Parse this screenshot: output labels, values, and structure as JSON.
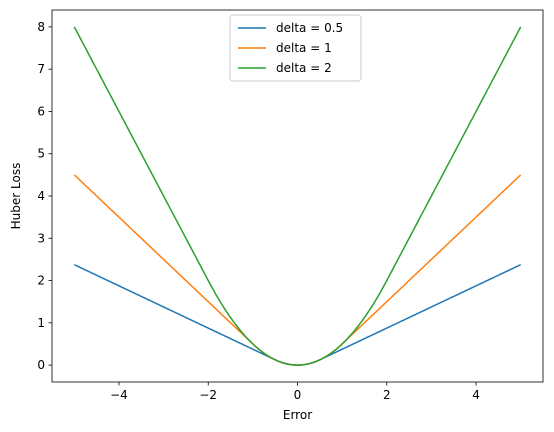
{
  "chart_data": {
    "type": "line",
    "title": "",
    "xlabel": "Error",
    "ylabel": "Huber Loss",
    "xlim": [
      -5.5,
      5.5
    ],
    "ylim": [
      -0.4,
      8.4
    ],
    "xticks": [
      -4,
      -2,
      0,
      2,
      4
    ],
    "xtick_labels": [
      "−4",
      "−2",
      "0",
      "2",
      "4"
    ],
    "yticks": [
      0,
      1,
      2,
      3,
      4,
      5,
      6,
      7,
      8
    ],
    "ytick_labels": [
      "0",
      "1",
      "2",
      "3",
      "4",
      "5",
      "6",
      "7",
      "8"
    ],
    "grid": false,
    "legend_position": "upper-center",
    "x_range": [
      -5,
      5
    ],
    "series": [
      {
        "name": "delta = 0.5",
        "delta": 0.5,
        "color": "#1f77b4"
      },
      {
        "name": "delta = 1",
        "delta": 1,
        "color": "#ff7f0e"
      },
      {
        "name": "delta = 2",
        "delta": 2,
        "color": "#2ca02c"
      }
    ]
  }
}
